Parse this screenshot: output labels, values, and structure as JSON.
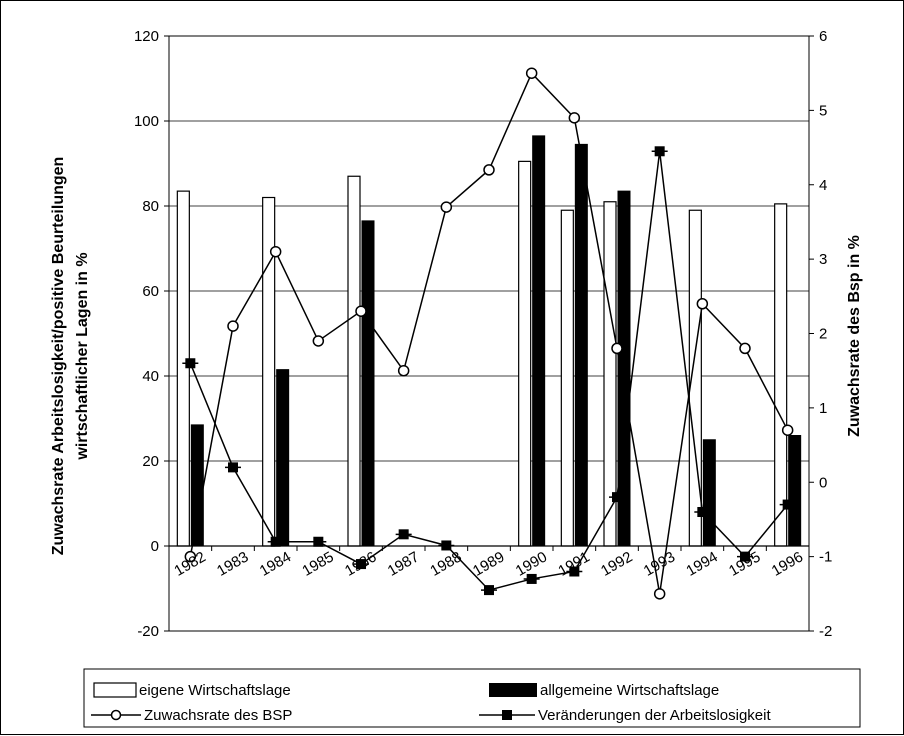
{
  "chart_data": {
    "type": "bar",
    "categories": [
      "1982",
      "1983",
      "1984",
      "1985",
      "1986",
      "1987",
      "1988",
      "1989",
      "1990",
      "1991",
      "1992",
      "1993",
      "1994",
      "1995",
      "1996"
    ],
    "ylabel_line1": "Zuwachsrate Arbeitslosigkeit/positive Beurteilungen",
    "ylabel_line2": "wirtschaftlicher Lagen in %",
    "y2label": "Zuwachsrate des Bsp in %",
    "ylim": [
      -20,
      120
    ],
    "y2lim": [
      -2,
      6
    ],
    "yticks": [
      "120",
      "100",
      "80",
      "60",
      "40",
      "20",
      "0",
      "-20"
    ],
    "y2ticks": [
      "6",
      "5",
      "4",
      "3",
      "2",
      "1",
      "0",
      "-1",
      "-2"
    ],
    "grid": true,
    "legend_position": "bottom",
    "series": [
      {
        "name": "eigene Wirtschaftslage",
        "kind": "bar",
        "axis": "left",
        "color": "#ffffff",
        "values": [
          83.5,
          null,
          82,
          null,
          87,
          null,
          null,
          null,
          90.5,
          79,
          81,
          null,
          79,
          null,
          80.5
        ]
      },
      {
        "name": "allgemeine Wirtschaftslage",
        "kind": "bar",
        "axis": "left",
        "color": "#000000",
        "values": [
          28.5,
          null,
          41.5,
          null,
          76.5,
          null,
          null,
          null,
          96.5,
          94.5,
          83.5,
          null,
          25,
          null,
          26
        ]
      },
      {
        "name": "Zuwachsrate des BSP",
        "kind": "line",
        "axis": "right",
        "marker": "circle",
        "values": [
          -1,
          2.1,
          3.1,
          1.9,
          2.3,
          1.5,
          3.7,
          4.2,
          5.5,
          4.9,
          1.8,
          -1.5,
          2.4,
          1.8,
          0.7
        ]
      },
      {
        "name": "Veränderungen der Arbeitslosigkeit",
        "kind": "line",
        "axis": "right",
        "marker": "square",
        "values": [
          1.6,
          0.2,
          -0.8,
          -0.8,
          -1.1,
          -0.7,
          -0.85,
          -1.45,
          -1.3,
          -1.2,
          -0.2,
          4.45,
          -0.4,
          -1,
          -0.3
        ]
      }
    ]
  }
}
